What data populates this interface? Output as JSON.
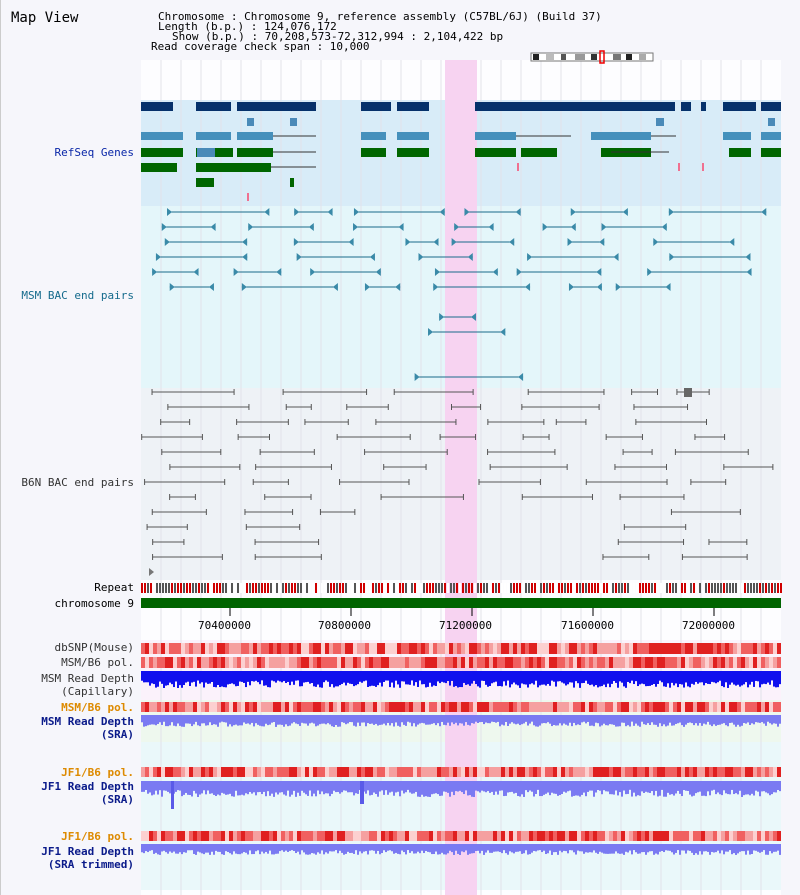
{
  "header": {
    "title": "Map View",
    "chromosome_line": "Chromosome    : Chromosome 9, reference assembly (C57BL/6J) (Build 37)",
    "length_line": "Length (b.p.) : 124,076,172",
    "show_line": "Show (b.p.) : 70,208,573-72,312,994 : 2,104,422 bp",
    "coverage_line": "Read coverage check span : 10,000"
  },
  "tracks": {
    "refseq": "RefSeq Genes",
    "msm_bac": "MSM BAC end pairs",
    "b6n_bac": "B6N BAC end pairs",
    "repeat": "Repeat",
    "chromosome": "chromosome 9",
    "dbsnp": "dbSNP(Mouse)",
    "msm_b6_pol": "MSM/B6 pol.",
    "msm_depth_cap_1": "MSM Read Depth",
    "msm_depth_cap_2": "(Capillary)",
    "msm_b6_pol_2": "MSM/B6 pol.",
    "msm_depth_sra_1": "MSM Read Depth",
    "msm_depth_sra_2": "(SRA)",
    "jf1_pol": "JF1/B6 pol.",
    "jf1_depth_sra_1": "JF1 Read Depth",
    "jf1_depth_sra_2": "(SRA)",
    "jf1_pol_2": "JF1/B6 pol.",
    "jf1_depth_trim_1": "JF1 Read Depth",
    "jf1_depth_trim_2": "(SRA trimmed)"
  },
  "axis": {
    "ticks": [
      "70400000",
      "70800000",
      "71200000",
      "71600000",
      "72000000"
    ]
  },
  "colors": {
    "refseq_bg": "#d8ecf8",
    "msm_bg": "#e4f6fa",
    "b6n_bg": "#eef2f6",
    "highlight": "#f7d3f1",
    "chromosome_bar": "#006400",
    "navy_gene": "#06316b",
    "steel_gene": "#4590bc",
    "green_gene": "#006600",
    "depth_blue": "#1010ee",
    "depth_light": "#7a7af2"
  }
}
